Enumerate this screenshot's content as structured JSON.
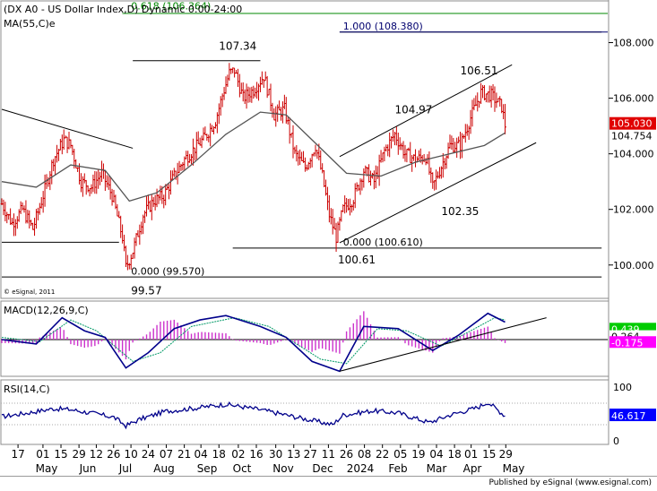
{
  "header": {
    "title": "(DX A0 - US Dollar Index,D) Dynamic 0:00-24:00",
    "ma_label": "MA(55,C)e",
    "copyright": "© eSignal, 2011"
  },
  "footer": {
    "text": "Published by eSignal (www.esignal.com)"
  },
  "colors": {
    "price_bars": "#cc0000",
    "moving_average": "#555555",
    "macd": "#00008b",
    "signal": "#009966",
    "histogram": "#cc33cc",
    "rsi": "#00008b",
    "last_price_tag": "#e00000",
    "macd_tag": "#00cc00",
    "macd_neg_tag": "#ff00ff",
    "rsi_tag": "#0000ff"
  },
  "chart_data": [
    {
      "type": "candlestick",
      "title": "(DX A0 - US Dollar Index,D) Dynamic 0:00-24:00",
      "ylim": [
        98.8,
        109.5
      ],
      "yticks": [
        "108.000",
        "106.000",
        "104.000",
        "102.000",
        "100.000"
      ],
      "ytick_values": [
        108,
        106,
        104,
        102,
        100
      ],
      "last_price": "105.030",
      "ma_value_label": "104.754",
      "x_day_labels": [
        "17",
        "01",
        "15",
        "29",
        "12",
        "26",
        "10",
        "24",
        "07",
        "21",
        "04",
        "18",
        "02",
        "16",
        "30",
        "13",
        "27",
        "11",
        "26",
        "08",
        "22",
        "05",
        "19",
        "04",
        "18",
        "01",
        "15",
        "29"
      ],
      "x_month_labels": [
        "May",
        "Jun",
        "Jul",
        "Aug",
        "Sep",
        "Oct",
        "Nov",
        "Dec",
        "2024",
        "Feb",
        "Mar",
        "Apr",
        "May"
      ],
      "price_points": [
        {
          "x": 0,
          "y": 102.2
        },
        {
          "x": 6,
          "y": 101.5
        },
        {
          "x": 12,
          "y": 102.0
        },
        {
          "x": 18,
          "y": 101.3
        },
        {
          "x": 24,
          "y": 102.5
        },
        {
          "x": 30,
          "y": 103.8
        },
        {
          "x": 36,
          "y": 104.5
        },
        {
          "x": 40,
          "y": 104.3
        },
        {
          "x": 46,
          "y": 103.0
        },
        {
          "x": 52,
          "y": 102.8
        },
        {
          "x": 58,
          "y": 103.3
        },
        {
          "x": 64,
          "y": 102.5
        },
        {
          "x": 70,
          "y": 101.0
        },
        {
          "x": 72,
          "y": 99.9
        },
        {
          "x": 76,
          "y": 100.5
        },
        {
          "x": 82,
          "y": 101.8
        },
        {
          "x": 88,
          "y": 102.3
        },
        {
          "x": 94,
          "y": 102.5
        },
        {
          "x": 100,
          "y": 103.2
        },
        {
          "x": 106,
          "y": 103.8
        },
        {
          "x": 112,
          "y": 104.2
        },
        {
          "x": 118,
          "y": 104.6
        },
        {
          "x": 124,
          "y": 105.2
        },
        {
          "x": 128,
          "y": 106.1
        },
        {
          "x": 132,
          "y": 106.9
        },
        {
          "x": 135,
          "y": 107.0
        },
        {
          "x": 140,
          "y": 106.0
        },
        {
          "x": 146,
          "y": 106.3
        },
        {
          "x": 152,
          "y": 106.8
        },
        {
          "x": 158,
          "y": 105.4
        },
        {
          "x": 164,
          "y": 105.6
        },
        {
          "x": 170,
          "y": 104.0
        },
        {
          "x": 176,
          "y": 103.5
        },
        {
          "x": 182,
          "y": 104.3
        },
        {
          "x": 186,
          "y": 103.2
        },
        {
          "x": 190,
          "y": 101.8
        },
        {
          "x": 194,
          "y": 101.0
        },
        {
          "x": 198,
          "y": 102.0
        },
        {
          "x": 204,
          "y": 102.4
        },
        {
          "x": 210,
          "y": 103.4
        },
        {
          "x": 216,
          "y": 103.0
        },
        {
          "x": 222,
          "y": 104.1
        },
        {
          "x": 228,
          "y": 104.7
        },
        {
          "x": 234,
          "y": 104.0
        },
        {
          "x": 240,
          "y": 103.8
        },
        {
          "x": 246,
          "y": 103.9
        },
        {
          "x": 250,
          "y": 102.8
        },
        {
          "x": 254,
          "y": 103.4
        },
        {
          "x": 260,
          "y": 104.3
        },
        {
          "x": 266,
          "y": 104.3
        },
        {
          "x": 272,
          "y": 105.3
        },
        {
          "x": 278,
          "y": 106.2
        },
        {
          "x": 284,
          "y": 106.1
        },
        {
          "x": 290,
          "y": 105.7
        },
        {
          "x": 292,
          "y": 105.03
        }
      ],
      "ma_points": [
        {
          "x": 0,
          "y": 103.0
        },
        {
          "x": 20,
          "y": 102.8
        },
        {
          "x": 40,
          "y": 103.6
        },
        {
          "x": 60,
          "y": 103.4
        },
        {
          "x": 74,
          "y": 102.3
        },
        {
          "x": 90,
          "y": 102.6
        },
        {
          "x": 110,
          "y": 103.6
        },
        {
          "x": 130,
          "y": 104.7
        },
        {
          "x": 150,
          "y": 105.5
        },
        {
          "x": 165,
          "y": 105.4
        },
        {
          "x": 180,
          "y": 104.5
        },
        {
          "x": 200,
          "y": 103.3
        },
        {
          "x": 220,
          "y": 103.2
        },
        {
          "x": 240,
          "y": 103.7
        },
        {
          "x": 260,
          "y": 104.0
        },
        {
          "x": 280,
          "y": 104.3
        },
        {
          "x": 292,
          "y": 104.754
        }
      ],
      "trendlines": [
        {
          "x1": 0,
          "y1": 105.6,
          "x2": 76,
          "y2": 104.2
        },
        {
          "x1": 196,
          "y1": 103.9,
          "x2": 296,
          "y2": 107.2
        },
        {
          "x1": 196,
          "y1": 100.8,
          "x2": 310,
          "y2": 104.4
        }
      ],
      "horizontal_levels": [
        {
          "y": 100.82,
          "x1": 0,
          "x2": 68
        },
        {
          "y": 107.35,
          "x1": 76,
          "x2": 150
        },
        {
          "y": 100.61,
          "x1": 134,
          "x2": 348
        },
        {
          "y": 99.57,
          "x1": 0,
          "x2": 348
        },
        {
          "y": 108.38,
          "x1": 196,
          "x2": 348
        },
        {
          "y": 109.05,
          "x1": 70,
          "x2": 348
        }
      ],
      "annotations": [
        {
          "text": "107.34",
          "x": 126,
          "y": 107.75
        },
        {
          "text": "106.51",
          "x": 266,
          "y": 106.85
        },
        {
          "text": "104.97",
          "x": 228,
          "y": 105.45
        },
        {
          "text": "102.35",
          "x": 255,
          "y": 101.8
        },
        {
          "text": "100.61",
          "x": 195,
          "y": 100.05
        },
        {
          "text": "99.57",
          "x": 75,
          "y": 98.95
        },
        {
          "text": "0.000 (100.610)",
          "x": 198,
          "y": 100.7
        },
        {
          "text": "0.000 (99.570)",
          "x": 75,
          "y": 99.65
        },
        {
          "text": "1.000 (108.380)",
          "x": 198,
          "y": 108.47
        },
        {
          "text": "0.618 (106.364)",
          "x": 75,
          "y": 109.2
        }
      ]
    },
    {
      "type": "line",
      "title": "MACD(12,26,9,C)",
      "series_labels": [
        "0.439",
        "0.264",
        "-0.175"
      ],
      "zero_level": 0,
      "ylim": [
        -1.6,
        1.6
      ],
      "macd_points": [
        {
          "x": 0,
          "y": 0
        },
        {
          "x": 20,
          "y": -0.2
        },
        {
          "x": 35,
          "y": 1.0
        },
        {
          "x": 48,
          "y": 0.4
        },
        {
          "x": 60,
          "y": 0.1
        },
        {
          "x": 72,
          "y": -1.3
        },
        {
          "x": 85,
          "y": -0.6
        },
        {
          "x": 100,
          "y": 0.5
        },
        {
          "x": 115,
          "y": 0.9
        },
        {
          "x": 130,
          "y": 1.1
        },
        {
          "x": 150,
          "y": 0.6
        },
        {
          "x": 165,
          "y": 0.1
        },
        {
          "x": 180,
          "y": -1.0
        },
        {
          "x": 196,
          "y": -1.45
        },
        {
          "x": 210,
          "y": 0.6
        },
        {
          "x": 230,
          "y": 0.5
        },
        {
          "x": 250,
          "y": -0.5
        },
        {
          "x": 265,
          "y": 0.2
        },
        {
          "x": 282,
          "y": 1.2
        },
        {
          "x": 292,
          "y": 0.8
        }
      ],
      "signal_points": [
        {
          "x": 0,
          "y": 0.1
        },
        {
          "x": 22,
          "y": -0.1
        },
        {
          "x": 40,
          "y": 0.9
        },
        {
          "x": 55,
          "y": 0.4
        },
        {
          "x": 76,
          "y": -1.0
        },
        {
          "x": 92,
          "y": -0.6
        },
        {
          "x": 110,
          "y": 0.6
        },
        {
          "x": 135,
          "y": 1.0
        },
        {
          "x": 155,
          "y": 0.6
        },
        {
          "x": 185,
          "y": -0.9
        },
        {
          "x": 200,
          "y": -1.1
        },
        {
          "x": 218,
          "y": 0.5
        },
        {
          "x": 235,
          "y": 0.4
        },
        {
          "x": 255,
          "y": -0.3
        },
        {
          "x": 272,
          "y": 0.4
        },
        {
          "x": 286,
          "y": 1.0
        },
        {
          "x": 292,
          "y": 0.9
        }
      ],
      "trendline": {
        "x1": 196,
        "y1": -1.45,
        "x2": 316,
        "y2": 1.0
      }
    },
    {
      "type": "line",
      "title": "RSI(14,C)",
      "ylim": [
        0,
        100
      ],
      "yticks": [
        "100",
        "0"
      ],
      "ytick_values": [
        100,
        0
      ],
      "last_value": "46.617",
      "rsi_points": [
        {
          "x": 0,
          "y": 45
        },
        {
          "x": 15,
          "y": 52
        },
        {
          "x": 30,
          "y": 60
        },
        {
          "x": 40,
          "y": 58
        },
        {
          "x": 55,
          "y": 50
        },
        {
          "x": 65,
          "y": 44
        },
        {
          "x": 72,
          "y": 28
        },
        {
          "x": 80,
          "y": 40
        },
        {
          "x": 95,
          "y": 55
        },
        {
          "x": 110,
          "y": 60
        },
        {
          "x": 130,
          "y": 68
        },
        {
          "x": 150,
          "y": 58
        },
        {
          "x": 165,
          "y": 48
        },
        {
          "x": 180,
          "y": 38
        },
        {
          "x": 192,
          "y": 30
        },
        {
          "x": 198,
          "y": 48
        },
        {
          "x": 215,
          "y": 56
        },
        {
          "x": 230,
          "y": 52
        },
        {
          "x": 248,
          "y": 34
        },
        {
          "x": 260,
          "y": 48
        },
        {
          "x": 276,
          "y": 62
        },
        {
          "x": 282,
          "y": 72
        },
        {
          "x": 292,
          "y": 46.6
        }
      ]
    }
  ]
}
